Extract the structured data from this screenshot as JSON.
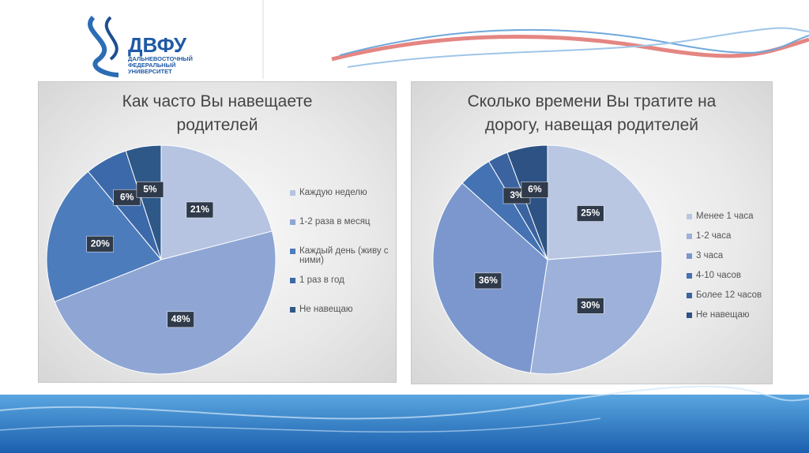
{
  "logo": {
    "name": "ДВФУ",
    "lines": [
      "ДАЛЬНЕВОСТОЧНЫЙ",
      "ФЕДЕРАЛЬНЫЙ",
      "УНИВЕРСИТЕТ"
    ]
  },
  "chart_data": [
    {
      "type": "pie",
      "title": "Как часто Вы навещаете родителей",
      "categories": [
        "Каждую неделю",
        "1-2 раза в месяц",
        "Каждый день (живу с ними)",
        "1 раз в год",
        "Не навещаю"
      ],
      "values": [
        21,
        48,
        20,
        6,
        5
      ],
      "value_labels": [
        "21%",
        "48%",
        "20%",
        "6%",
        "5%"
      ],
      "colors": [
        "#b6c4e1",
        "#8fa6d5",
        "#4d7cbd",
        "#3c69a9",
        "#2e5888"
      ]
    },
    {
      "type": "pie",
      "title": "Сколько времени Вы тратите на дорогу, навещая родителей",
      "categories": [
        "Менее 1 часа",
        "1-2 часа",
        "3 часа",
        "4-10 часов",
        "Более 12 часов",
        "Не навещаю"
      ],
      "values": [
        25,
        30,
        36,
        5,
        3,
        6
      ],
      "value_labels": [
        "25%",
        "30%",
        "36%",
        null,
        "3%",
        "6%"
      ],
      "colors": [
        "#b9c7e3",
        "#9db1da",
        "#7b97cd",
        "#4472b3",
        "#3a63a0",
        "#2d5283"
      ]
    }
  ]
}
